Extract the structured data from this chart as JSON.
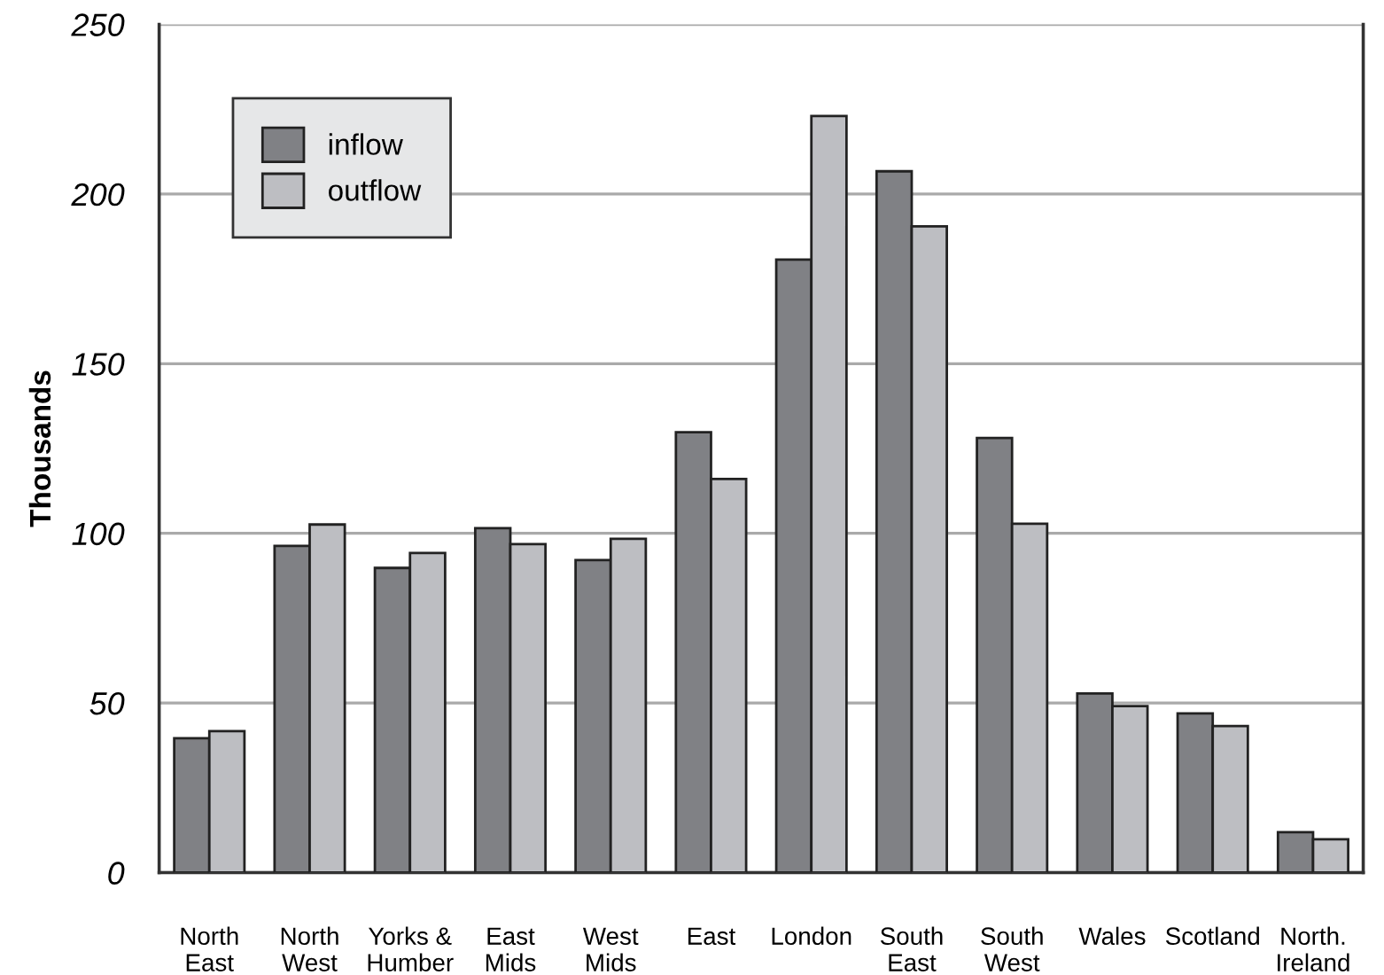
{
  "chart_data": {
    "type": "bar",
    "ylabel": "Thousands",
    "categories": [
      "North\nEast",
      "North\nWest",
      "Yorks &\nHumber",
      "East\nMids",
      "West\nMids",
      "East",
      "London",
      "South\nEast",
      "South\nWest",
      "Wales",
      "Scotland",
      "North.\nIreland"
    ],
    "series": [
      {
        "name": "inflow",
        "color": "#808185",
        "values": [
          39.6,
          96.3,
          89.8,
          101.5,
          92.1,
          129.8,
          180.7,
          206.7,
          128.1,
          52.8,
          46.9,
          11.9
        ]
      },
      {
        "name": "outflow",
        "color": "#bdbec2",
        "values": [
          41.7,
          102.6,
          94.2,
          96.8,
          98.4,
          116,
          223,
          190.5,
          102.8,
          49.1,
          43.2,
          9.8
        ]
      }
    ],
    "ylim": [
      0,
      250
    ],
    "yticks": [
      0,
      50,
      100,
      150,
      200,
      250
    ],
    "grid": "y",
    "legend": "top left"
  }
}
